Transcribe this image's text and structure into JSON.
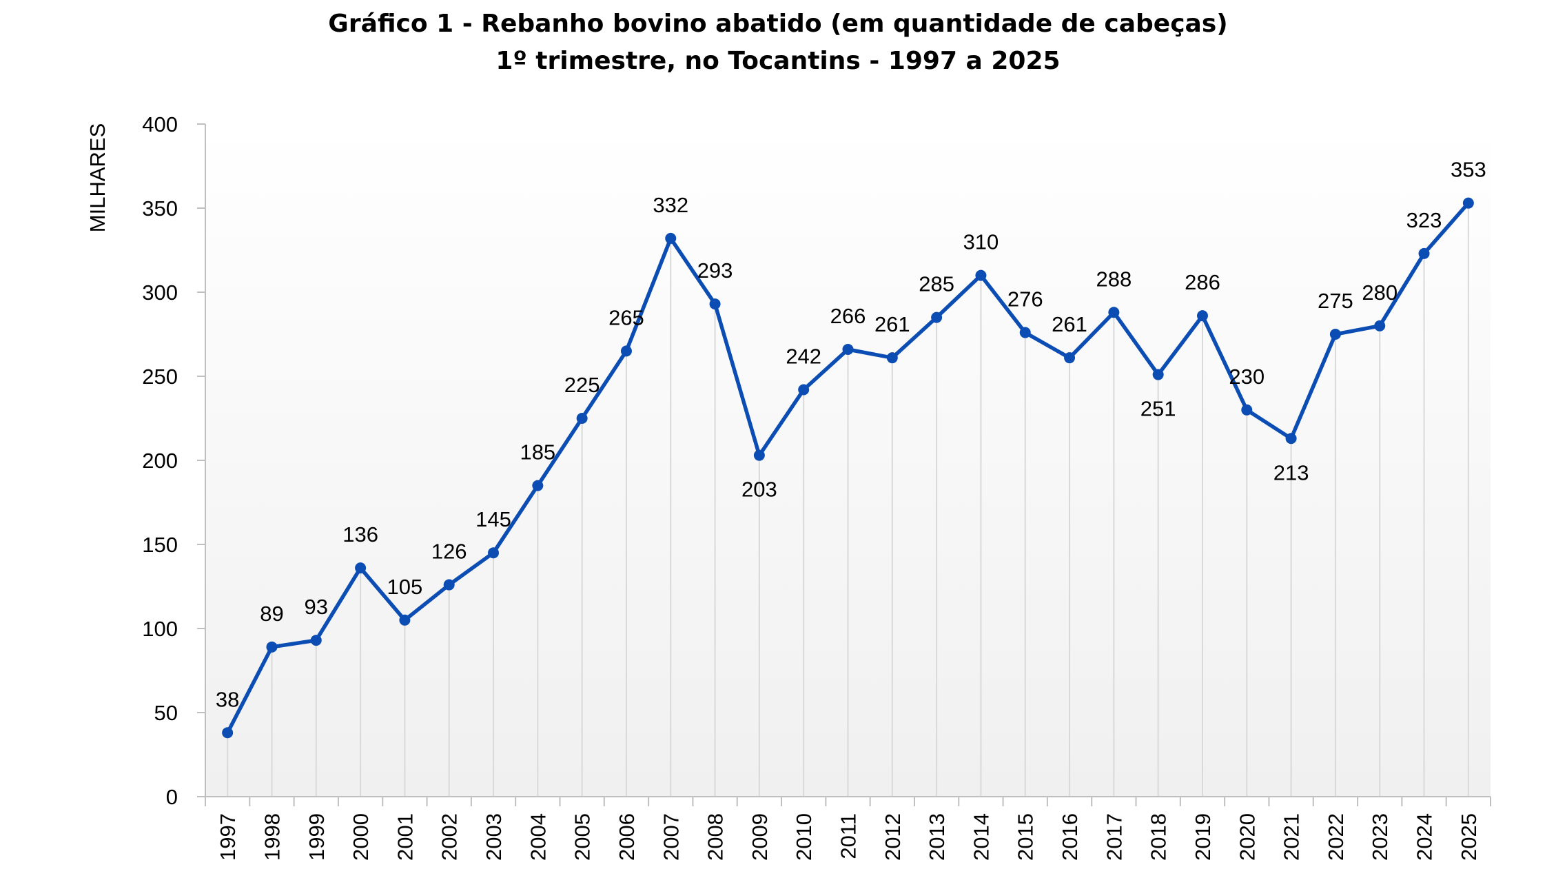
{
  "chart_data": {
    "type": "line",
    "title_line1": "Gráfico 1 -  Rebanho bovino abatido (em quantidade de cabeças)",
    "title_line2": "1º trimestre, no Tocantins - 1997 a 2025",
    "ylabel": "MILHARES",
    "xlabel": "",
    "ylim": [
      0,
      400
    ],
    "yticks": [
      0,
      50,
      100,
      150,
      200,
      250,
      300,
      350,
      400
    ],
    "grid": "vertical drop lines",
    "colors": {
      "line": "#0B4DB3",
      "marker": "#0B4DB3",
      "dropline": "#d9d9d9",
      "axis": "#bfbfbf"
    },
    "categories": [
      "1997",
      "1998",
      "1999",
      "2000",
      "2001",
      "2002",
      "2003",
      "2004",
      "2005",
      "2006",
      "2007",
      "2008",
      "2009",
      "2010",
      "2011",
      "2012",
      "2013",
      "2014",
      "2015",
      "2016",
      "2017",
      "2018",
      "2019",
      "2020",
      "2021",
      "2022",
      "2023",
      "2024",
      "2025"
    ],
    "values": [
      38,
      89,
      93,
      136,
      105,
      126,
      145,
      185,
      225,
      265,
      332,
      293,
      203,
      242,
      266,
      261,
      285,
      310,
      276,
      261,
      288,
      251,
      286,
      230,
      213,
      275,
      280,
      323,
      353
    ],
    "label_positions": [
      "above",
      "above",
      "above",
      "above",
      "above",
      "above",
      "above",
      "above",
      "above",
      "above",
      "above",
      "above",
      "below",
      "above",
      "above",
      "above",
      "above",
      "above",
      "above",
      "above",
      "above",
      "below",
      "above",
      "above",
      "below",
      "above",
      "above",
      "above",
      "above"
    ]
  }
}
